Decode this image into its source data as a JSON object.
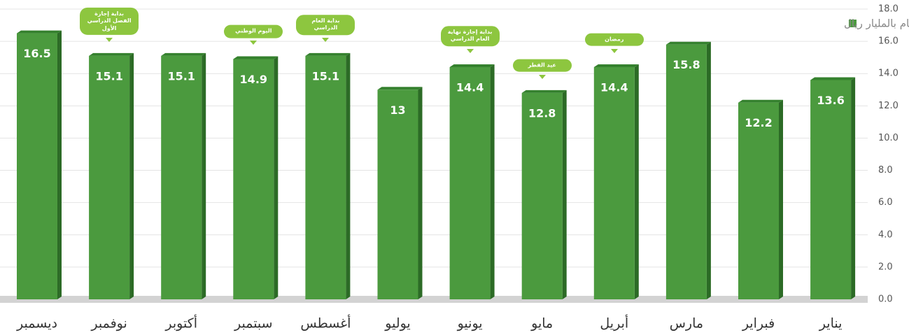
{
  "chart_data": {
    "type": "bar",
    "legend": "الأرقام بالمليار ريال",
    "categories": [
      "ديسمبر",
      "نوفمبر",
      "أكتوبر",
      "سبتمبر",
      "أغسطس",
      "يوليو",
      "يونيو",
      "مايو",
      "أبريل",
      "مارس",
      "فبراير",
      "يناير"
    ],
    "values": [
      16.5,
      15.1,
      15.1,
      14.9,
      15.1,
      13,
      14.4,
      12.8,
      14.4,
      15.8,
      12.2,
      13.6
    ],
    "annotations": [
      null,
      "بداية إجازة الفصل الدراسي الأول",
      null,
      "اليوم الوطني",
      "بداية العام الدراسي",
      null,
      "بداية إجازة نهاية العام الدراسي",
      "عيد الفطر",
      "رمضان",
      null,
      null,
      null
    ],
    "color": "#4b9a3e",
    "ylim": [
      0,
      18
    ],
    "yticks": [
      {
        "value": 0,
        "label": "0.0"
      },
      {
        "value": 2,
        "label": "2.0"
      },
      {
        "value": 4,
        "label": "4.0"
      },
      {
        "value": 6,
        "label": "6.0"
      },
      {
        "value": 8,
        "label": "8.0"
      },
      {
        "value": 10,
        "label": "10.0"
      },
      {
        "value": 12,
        "label": "12.0"
      },
      {
        "value": 14,
        "label": "14.0"
      },
      {
        "value": 16,
        "label": "16.0"
      },
      {
        "value": 18,
        "label": "18.0"
      }
    ],
    "grid": true
  }
}
